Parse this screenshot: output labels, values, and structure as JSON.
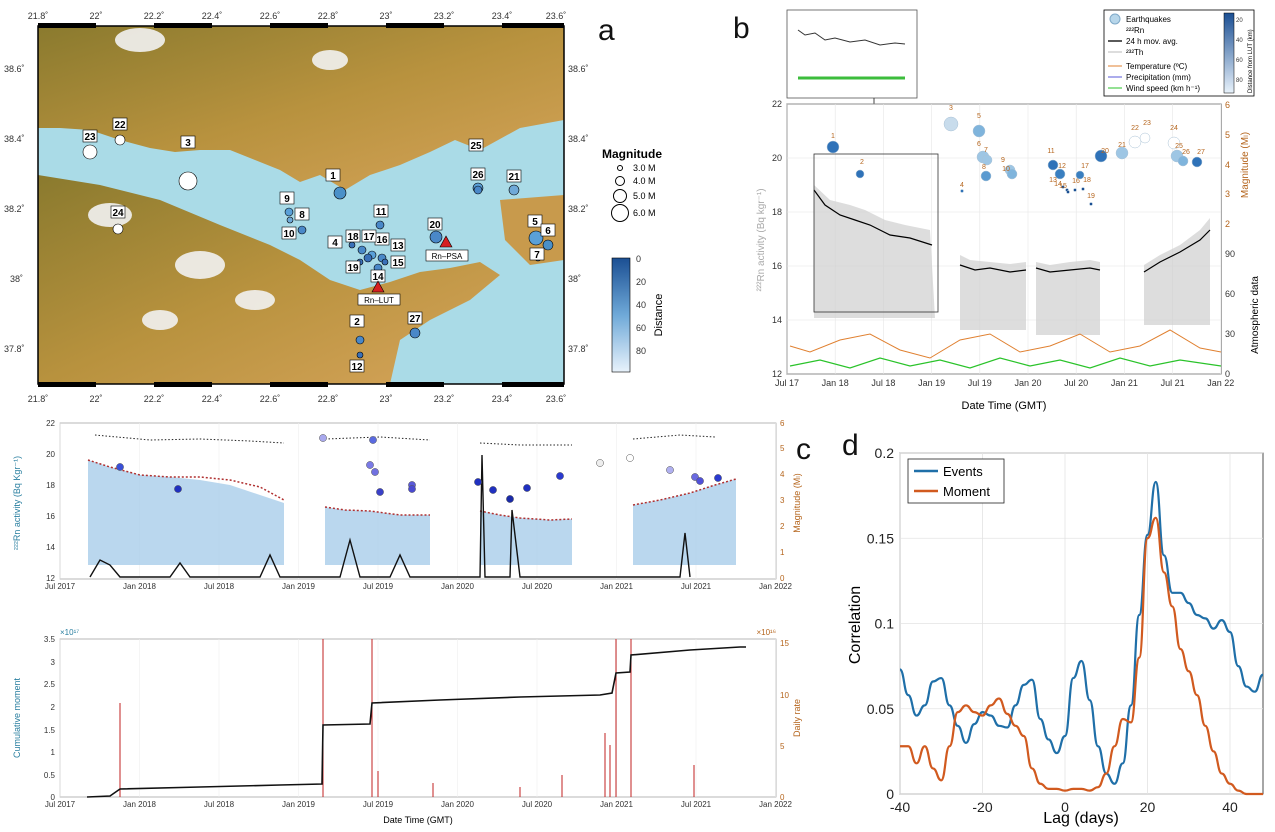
{
  "panel_labels": {
    "a": "a",
    "b": "b",
    "c": "c",
    "d": "d"
  },
  "panel_a": {
    "lon_ticks": [
      "21.8˚",
      "22˚",
      "22.2˚",
      "22.4˚",
      "22.6˚",
      "22.8˚",
      "23˚",
      "23.2˚",
      "23.4˚",
      "23.6˚"
    ],
    "lat_ticks": [
      "38.6˚",
      "38.4˚",
      "38.2˚",
      "38˚",
      "37.8˚"
    ],
    "magnitude_title": "Magnitude",
    "magnitude_legend": [
      "3.0 M",
      "4.0 M",
      "5.0 M",
      "6.0 M"
    ],
    "colorbar_title": "Distance",
    "colorbar_ticks": [
      "0",
      "20",
      "40",
      "60",
      "80"
    ],
    "stations": [
      "Rn–PSA",
      "Rn–LUT"
    ],
    "event_labels": [
      "1",
      "2",
      "3",
      "4",
      "5",
      "6",
      "7",
      "8",
      "9",
      "10",
      "11",
      "12",
      "13",
      "14",
      "15",
      "16",
      "17",
      "18",
      "19",
      "20",
      "21",
      "22",
      "23",
      "24",
      "25",
      "26",
      "27"
    ]
  },
  "panel_b": {
    "legend": {
      "earthquakes": "Earthquakes",
      "rn": "²²²Rn",
      "mov_avg": "24 h mov. avg.",
      "th": "²³²Th",
      "temperature": "Temperature (ºC)",
      "precipitation": "Precipitation (mm)",
      "wind": "Wind speed (km h⁻¹)",
      "colorbar_title": "Distance from LUT (km)",
      "colorbar_ticks": [
        "20",
        "40",
        "60",
        "80"
      ]
    },
    "ylabel_left": "²²²Rn activity (Bq kgr⁻¹)",
    "ylabel_right_top": "Magnitude (Mₗ)",
    "ylabel_right_bottom": "Atmospheric data",
    "xlabel": "Date Time (GMT)",
    "x_ticks": [
      "Jul 17",
      "Jan 18",
      "Jul 18",
      "Jan 19",
      "Jul 19",
      "Jan 20",
      "Jul 20",
      "Jan 21",
      "Jul 21",
      "Jan 22"
    ],
    "y_left_ticks": [
      "12",
      "14",
      "16",
      "18",
      "20",
      "22"
    ],
    "y_mag_ticks": [
      "2",
      "3",
      "4",
      "5",
      "6"
    ],
    "y_atm_ticks": [
      "0",
      "30",
      "60",
      "90"
    ],
    "event_labels": [
      "1",
      "2",
      "3",
      "4",
      "5",
      "6",
      "7",
      "8",
      "9",
      "10",
      "11",
      "12",
      "13",
      "14",
      "15",
      "16",
      "17",
      "18",
      "19",
      "20",
      "21",
      "22",
      "23",
      "24",
      "25",
      "26",
      "27"
    ]
  },
  "panel_c_top": {
    "ylabel_left": "²²²Rn activity (Bq Kgr⁻¹)",
    "ylabel_right": "Magnitude (Mₗ)",
    "x_ticks": [
      "Jul 2017",
      "Jan 2018",
      "Jul 2018",
      "Jan 2019",
      "Jul 2019",
      "Jan 2020",
      "Jul 2020",
      "Jan 2021",
      "Jul 2021",
      "Jan 2022"
    ],
    "y_left_ticks": [
      "12",
      "14",
      "16",
      "18",
      "20",
      "22"
    ],
    "y_right_ticks": [
      "0",
      "1",
      "2",
      "3",
      "4",
      "5",
      "6"
    ]
  },
  "panel_c_bottom": {
    "ylabel_left": "Cumulative moment",
    "ylabel_right": "Daily rate",
    "xlabel": "Date Time (GMT)",
    "exp_left": "×10¹⁷",
    "exp_right": "×10¹⁶",
    "x_ticks": [
      "Jul 2017",
      "Jan 2018",
      "Jul 2018",
      "Jan 2019",
      "Jul 2019",
      "Jan 2020",
      "Jul 2020",
      "Jan 2021",
      "Jul 2021",
      "Jan 2022"
    ],
    "y_left_ticks": [
      "0",
      "0.5",
      "1",
      "1.5",
      "2",
      "2.5",
      "3",
      "3.5"
    ],
    "y_right_ticks": [
      "0",
      "5",
      "10",
      "15"
    ]
  },
  "chart_data": {
    "type": "line",
    "title": "",
    "xlabel": "Lag (days)",
    "ylabel": "Correlation",
    "xlim": [
      -40,
      48
    ],
    "ylim": [
      0,
      0.2
    ],
    "x_ticks": [
      "-40",
      "-20",
      "0",
      "20",
      "40"
    ],
    "y_ticks": [
      "0",
      "0.05",
      "0.1",
      "0.15",
      "0.2"
    ],
    "legend_position": "top-left",
    "grid": true,
    "x": [
      -40,
      -38,
      -36,
      -34,
      -32,
      -30,
      -28,
      -26,
      -24,
      -22,
      -20,
      -18,
      -16,
      -14,
      -12,
      -10,
      -8,
      -6,
      -4,
      -2,
      0,
      2,
      4,
      6,
      8,
      10,
      12,
      14,
      16,
      18,
      20,
      22,
      24,
      26,
      28,
      30,
      32,
      34,
      36,
      38,
      40,
      42,
      44,
      46,
      48
    ],
    "series": [
      {
        "name": "Events",
        "color": "#1f6fa8",
        "values": [
          0.073,
          0.058,
          0.046,
          0.052,
          0.066,
          0.068,
          0.052,
          0.04,
          0.03,
          0.041,
          0.048,
          0.046,
          0.04,
          0.039,
          0.052,
          0.064,
          0.067,
          0.044,
          0.032,
          0.024,
          0.034,
          0.068,
          0.078,
          0.055,
          0.028,
          0.012,
          0.006,
          0.018,
          0.052,
          0.105,
          0.152,
          0.183,
          0.14,
          0.118,
          0.118,
          0.112,
          0.105,
          0.103,
          0.097,
          0.102,
          0.095,
          0.075,
          0.063,
          0.06,
          0.07
        ]
      },
      {
        "name": "Moment",
        "color": "#d15a1f",
        "values": [
          0.028,
          0.028,
          0.018,
          0.028,
          0.015,
          0.008,
          0.028,
          0.048,
          0.052,
          0.048,
          0.046,
          0.052,
          0.056,
          0.047,
          0.04,
          0.034,
          0.015,
          0.006,
          0.003,
          0.003,
          0.002,
          0.003,
          0.003,
          0.002,
          0.004,
          0.012,
          0.028,
          0.044,
          0.042,
          0.08,
          0.15,
          0.162,
          0.13,
          0.11,
          0.085,
          0.072,
          0.058,
          0.04,
          0.025,
          0.012,
          0.006,
          0.002,
          0.0,
          0.0,
          0.0
        ]
      }
    ]
  }
}
